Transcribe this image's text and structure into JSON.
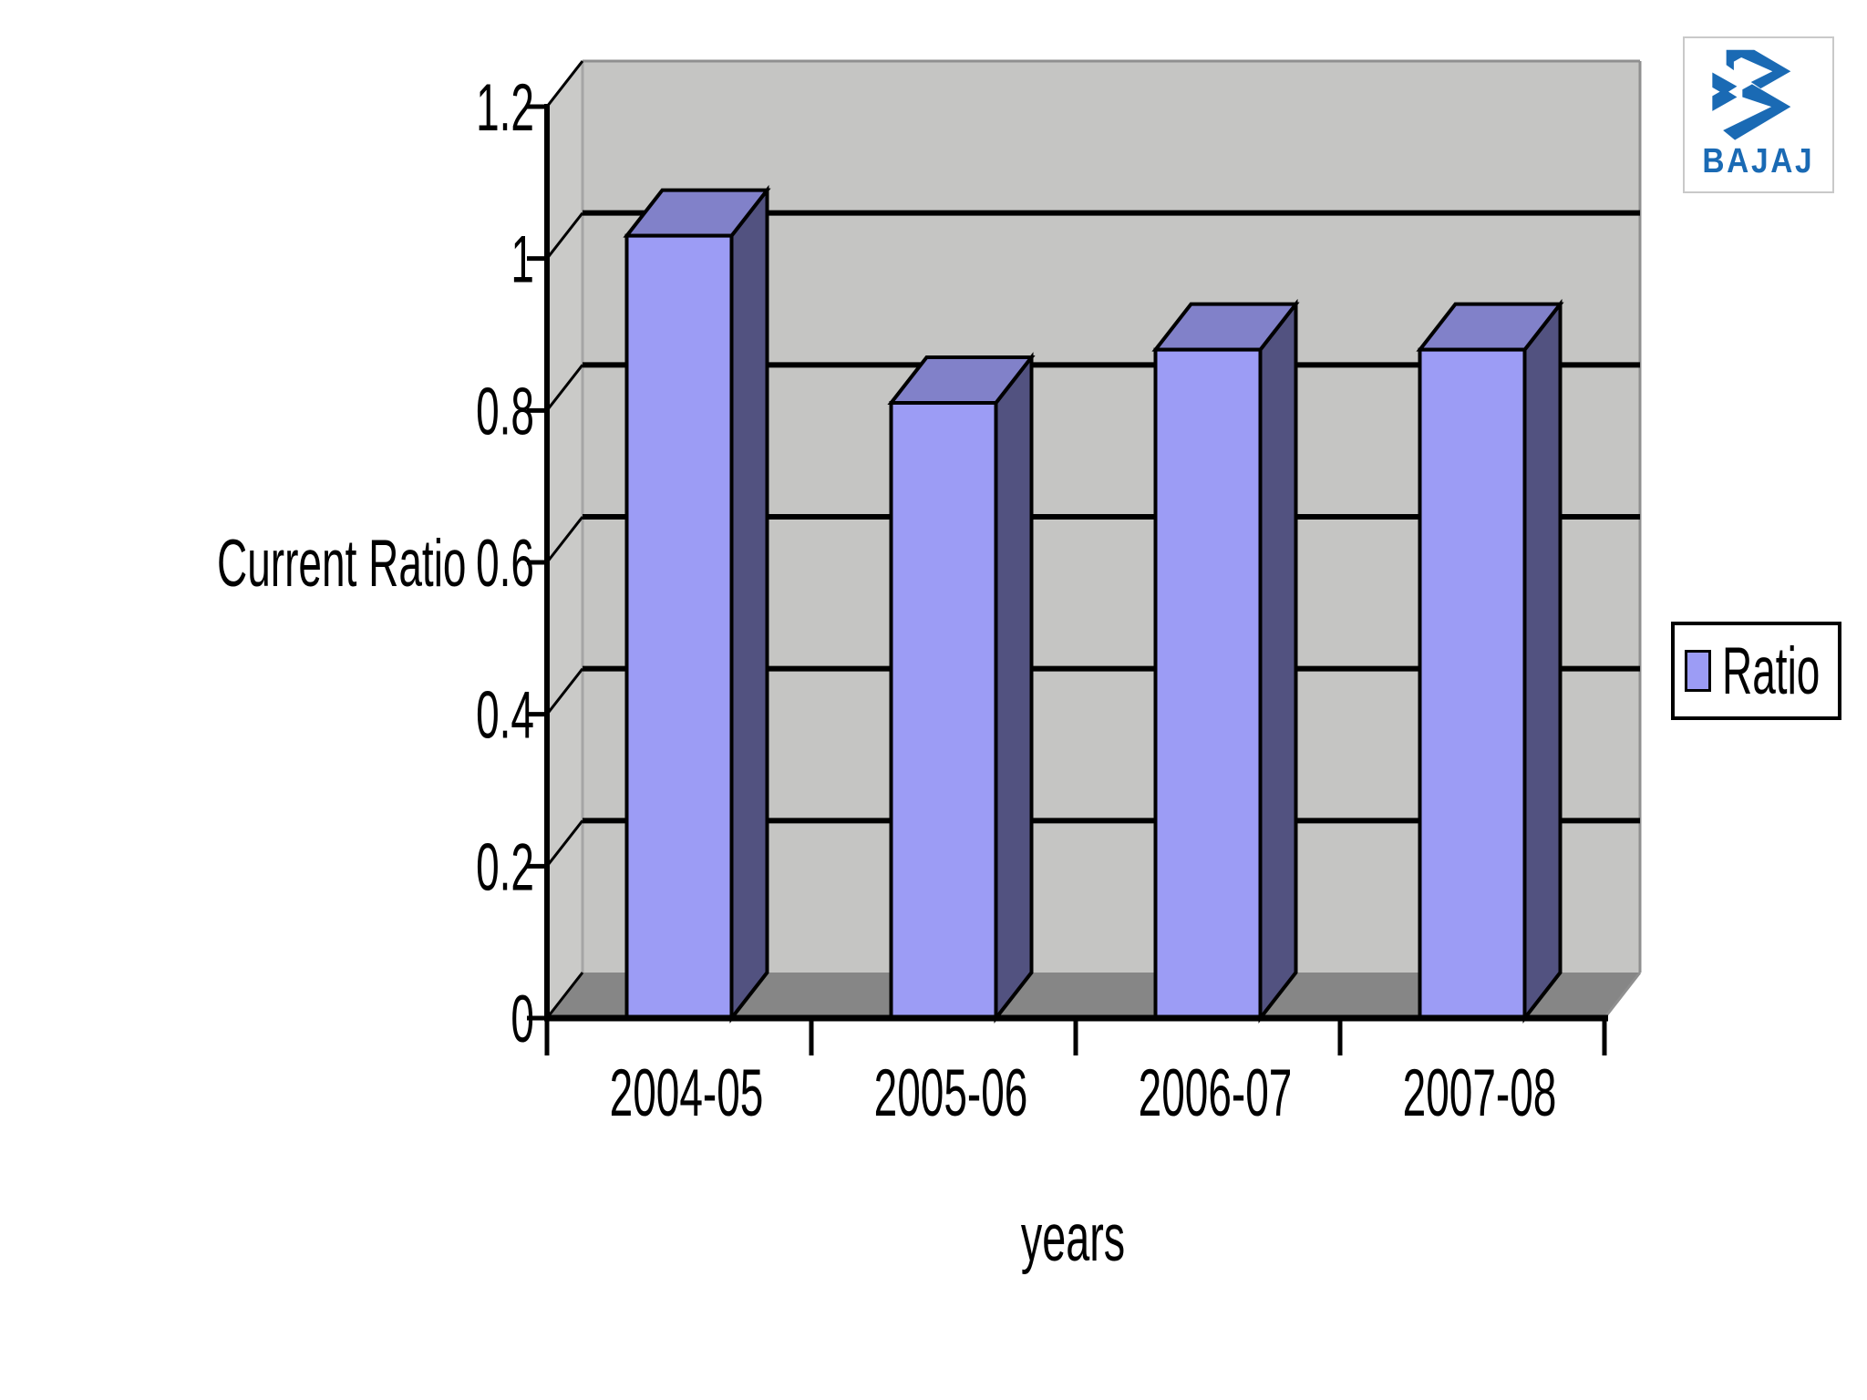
{
  "chart_data": {
    "type": "bar",
    "style": "3d-column",
    "title": "",
    "categories": [
      "2004-05",
      "2005-06",
      "2006-07",
      "2007-08"
    ],
    "series": [
      {
        "name": "Ratio",
        "values": [
          1.03,
          0.81,
          0.88,
          0.88
        ]
      }
    ],
    "xlabel": "years",
    "ylabel": "Current Ratio",
    "ylim": [
      0,
      1.2
    ],
    "ytick_step": 0.2,
    "yticks": [
      "0",
      "0.2",
      "0.4",
      "0.6",
      "0.8",
      "1",
      "1.2"
    ],
    "grid": "horizontal-on",
    "legend": {
      "position": "right",
      "entries": [
        {
          "label": "Ratio",
          "swatch": "#9c9cf5"
        }
      ]
    },
    "colors": {
      "bar_front": "#9c9cf5",
      "bar_top": "#8181c9",
      "bar_side": "#525280",
      "bar_outline": "#000000",
      "back_wall": "#c5c5c3",
      "side_wall": "#cacac8",
      "floor": "#868686",
      "gridline": "#000000",
      "axis": "#000000",
      "text": "#000000",
      "wall_edge": "#8f8f8f"
    }
  },
  "logo": {
    "brand": "BAJAJ",
    "color": "#1a6ab4"
  }
}
